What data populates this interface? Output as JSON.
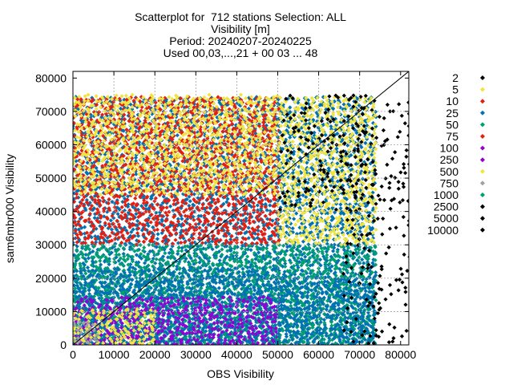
{
  "chart_data": {
    "type": "scatter",
    "title_lines": [
      "Scatterplot for  712 stations Selection: ALL",
      "Visibility [m]",
      "Period: 20240207-20240225",
      "Used 00,03,...,21 + 00 03 ... 48"
    ],
    "xlabel": "OBS Visibility",
    "ylabel": "sam6mbr000 Visibility",
    "xlim": [
      0,
      82000
    ],
    "ylim": [
      0,
      82000
    ],
    "x_ticks": [
      0,
      10000,
      20000,
      30000,
      40000,
      50000,
      60000,
      70000,
      80000
    ],
    "y_ticks": [
      0,
      10000,
      20000,
      30000,
      40000,
      50000,
      60000,
      70000,
      80000
    ],
    "grid": true,
    "diagonal": true,
    "legend_placement": "right",
    "legend": [
      {
        "label": "2",
        "color": "#000000"
      },
      {
        "label": "5",
        "color": "#f0e442"
      },
      {
        "label": "10",
        "color": "#e51e10"
      },
      {
        "label": "25",
        "color": "#0072b2"
      },
      {
        "label": "50",
        "color": "#009e73"
      },
      {
        "label": "75",
        "color": "#e51e10"
      },
      {
        "label": "100",
        "color": "#9400d3"
      },
      {
        "label": "250",
        "color": "#9400d3"
      },
      {
        "label": "500",
        "color": "#f0e442"
      },
      {
        "label": "750",
        "color": "#a0a0a0"
      },
      {
        "label": "1000",
        "color": "#009e73"
      },
      {
        "label": "2500",
        "color": "#000000"
      },
      {
        "label": "5000",
        "color": "#000000"
      },
      {
        "label": "10000",
        "color": "#000000"
      }
    ],
    "regions": [
      {
        "series": "25",
        "x": [
          0,
          50000
        ],
        "y": [
          0,
          74000
        ]
      },
      {
        "series": "10",
        "x": [
          0,
          50000
        ],
        "y": [
          30000,
          74000
        ]
      },
      {
        "series": "500",
        "x": [
          0,
          50000
        ],
        "y": [
          45000,
          74000
        ]
      },
      {
        "series": "50",
        "x": [
          0,
          50000
        ],
        "y": [
          0,
          30000
        ]
      },
      {
        "series": "25",
        "x": [
          0,
          50000
        ],
        "y": [
          0,
          22000
        ]
      },
      {
        "series": "100",
        "x": [
          0,
          50000
        ],
        "y": [
          0,
          14000
        ]
      },
      {
        "series": "500",
        "x": [
          0,
          20000
        ],
        "y": [
          0,
          10000
        ]
      },
      {
        "series": "750",
        "x": [
          0,
          6000
        ],
        "y": [
          0,
          7000
        ]
      },
      {
        "series": "25",
        "x": [
          50000,
          74000
        ],
        "y": [
          0,
          74000
        ]
      },
      {
        "series": "50",
        "x": [
          50000,
          74000
        ],
        "y": [
          0,
          30000
        ]
      },
      {
        "series": "25",
        "x": [
          50000,
          74000
        ],
        "y": [
          0,
          20000
        ]
      },
      {
        "series": "500",
        "x": [
          50000,
          74000
        ],
        "y": [
          30000,
          74000
        ]
      },
      {
        "series": "2",
        "x": [
          50000,
          74000
        ],
        "y": [
          40000,
          74000
        ]
      },
      {
        "series": "2",
        "x": [
          66000,
          82000
        ],
        "y": [
          0,
          74000
        ]
      }
    ]
  }
}
